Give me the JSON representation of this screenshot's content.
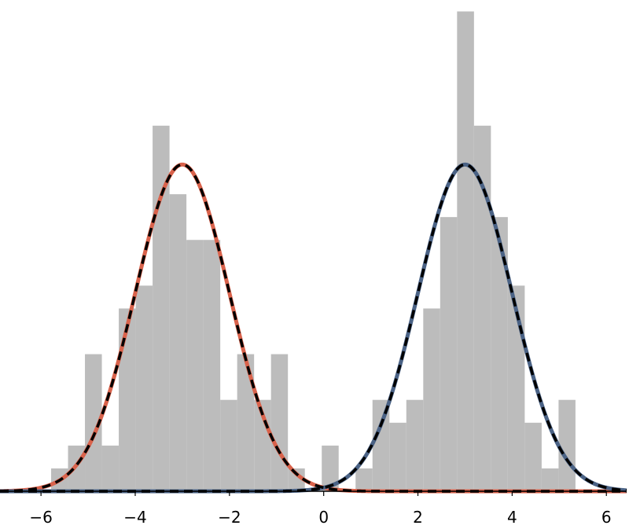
{
  "chart_data": {
    "type": "histogram",
    "bins": [
      -5.785,
      -5.426,
      -5.067,
      -4.708,
      -4.349,
      -3.99,
      -3.631,
      -3.272,
      -2.913,
      -2.554,
      -2.195,
      -1.836,
      -1.477,
      -1.118,
      -0.759,
      -0.4,
      -0.041,
      0.318,
      0.677,
      1.036,
      1.395,
      1.754,
      2.113,
      2.472,
      2.831,
      3.19,
      3.549,
      3.908,
      4.267,
      4.626,
      4.985,
      5.344
    ],
    "values": [
      1,
      2,
      6,
      2,
      8,
      9,
      16,
      13,
      11,
      11,
      4,
      6,
      4,
      6,
      1,
      0,
      2,
      0,
      1,
      4,
      3,
      4,
      8,
      12,
      21,
      16,
      12,
      9,
      3,
      1,
      4
    ],
    "color": "#bcbcbc",
    "curves": [
      {
        "color": "#d9624b",
        "mean": -3,
        "sd": 1.0,
        "peak": 14.3
      },
      {
        "color": "#4a6285",
        "mean": 3,
        "sd": 1.0,
        "peak": 14.3
      }
    ],
    "overlay_color": "#000000",
    "xlim": [
      -6.87,
      6.43
    ],
    "ylim": [
      0,
      21.5
    ],
    "xticks": [
      {
        "value": -6,
        "label": "−6"
      },
      {
        "value": -4,
        "label": "−4"
      },
      {
        "value": -2,
        "label": "−2"
      },
      0,
      2,
      4,
      6
    ]
  }
}
